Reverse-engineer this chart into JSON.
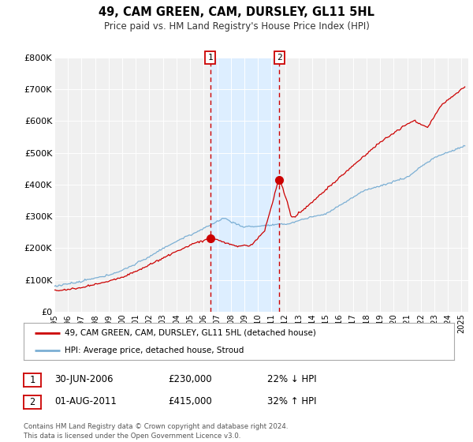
{
  "title": "49, CAM GREEN, CAM, DURSLEY, GL11 5HL",
  "subtitle": "Price paid vs. HM Land Registry's House Price Index (HPI)",
  "ylim": [
    0,
    800000
  ],
  "yticks": [
    0,
    100000,
    200000,
    300000,
    400000,
    500000,
    600000,
    700000,
    800000
  ],
  "ytick_labels": [
    "£0",
    "£100K",
    "£200K",
    "£300K",
    "£400K",
    "£500K",
    "£600K",
    "£700K",
    "£800K"
  ],
  "xlim_start": 1995.0,
  "xlim_end": 2025.5,
  "red_line_color": "#cc0000",
  "blue_line_color": "#7bafd4",
  "shade_color": "#ddeeff",
  "marker1_date": 2006.5,
  "marker1_value": 230000,
  "marker2_date": 2011.583,
  "marker2_value": 415000,
  "legend_label_red": "49, CAM GREEN, CAM, DURSLEY, GL11 5HL (detached house)",
  "legend_label_blue": "HPI: Average price, detached house, Stroud",
  "table_row1": [
    "1",
    "30-JUN-2006",
    "£230,000",
    "22% ↓ HPI"
  ],
  "table_row2": [
    "2",
    "01-AUG-2011",
    "£415,000",
    "32% ↑ HPI"
  ],
  "footnote": "Contains HM Land Registry data © Crown copyright and database right 2024.\nThis data is licensed under the Open Government Licence v3.0.",
  "background_color": "#ffffff",
  "plot_bg_color": "#f0f0f0"
}
